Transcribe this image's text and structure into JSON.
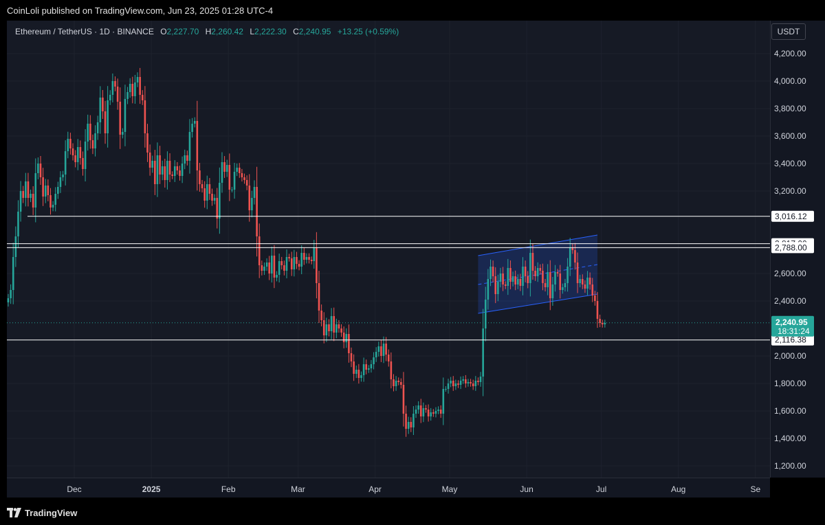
{
  "header": {
    "published": "CoinLoli published on TradingView.com, Jun 23, 2025 01:28 UTC-4"
  },
  "legend": {
    "symbol": "Ethereum / TetherUS · 1D · BINANCE",
    "o_label": "O",
    "o": "2,227.70",
    "h_label": "H",
    "h": "2,260.42",
    "l_label": "L",
    "l": "2,222.30",
    "c_label": "C",
    "c": "2,240.95",
    "change": "+13.25 (+0.59%)"
  },
  "currency": "USDT",
  "footer": {
    "brand": "TradingView"
  },
  "colors": {
    "up": "#26a69a",
    "down": "#ef5350",
    "channel": "#2962ff",
    "level": "#ffffff"
  },
  "chart_data": {
    "type": "candlestick",
    "title": "Ethereum / TetherUS · 1D · BINANCE",
    "y_ticks": [
      "4,200.00",
      "4,000.00",
      "3,800.00",
      "3,600.00",
      "3,400.00",
      "3,200.00",
      "2,600.00",
      "2,400.00",
      "2,000.00",
      "1,800.00",
      "1,600.00",
      "1,400.00",
      "1,200.00"
    ],
    "y_tick_values": [
      4200,
      4000,
      3800,
      3600,
      3400,
      3200,
      2600,
      2400,
      2000,
      1800,
      1600,
      1400,
      1200
    ],
    "x_ticks": [
      {
        "label": "Dec",
        "day": 0
      },
      {
        "label": "2025",
        "day": 31
      },
      {
        "label": "Feb",
        "day": 62
      },
      {
        "label": "Mar",
        "day": 90
      },
      {
        "label": "Apr",
        "day": 121
      },
      {
        "label": "May",
        "day": 151
      },
      {
        "label": "Jun",
        "day": 182
      },
      {
        "label": "Jul",
        "day": 212
      },
      {
        "label": "Aug",
        "day": 243
      },
      {
        "label": "Se",
        "day": 274
      }
    ],
    "ylim": [
      1150,
      4380
    ],
    "start_date": "2024-11-04",
    "price_levels": [
      {
        "value": 3016.12,
        "label": "3,016.12"
      },
      {
        "value": 2817.0,
        "label": "2,817.00"
      },
      {
        "value": 2788.0,
        "label": "2,788.00"
      },
      {
        "value": 2116.38,
        "label": "2,116.38"
      }
    ],
    "last_price": {
      "value": 2240.95,
      "label": "2,240.95",
      "countdown": "18:31:24"
    },
    "channel": {
      "start": "2025-05-12",
      "end": "2025-06-29",
      "lower_start": 2310,
      "lower_end": 2450,
      "upper_start": 2730,
      "upper_end": 2880,
      "mid_start": 2520,
      "mid_end": 2665
    },
    "closes": [
      2420,
      2480,
      2720,
      2870,
      3050,
      3200,
      3150,
      3270,
      3150,
      3180,
      3080,
      3330,
      3400,
      3300,
      3160,
      3240,
      3170,
      3080,
      3100,
      3180,
      3230,
      3300,
      3320,
      3490,
      3580,
      3510,
      3460,
      3410,
      3520,
      3440,
      3360,
      3560,
      3690,
      3570,
      3510,
      3620,
      3700,
      3880,
      3780,
      3620,
      3860,
      3900,
      4000,
      3960,
      3850,
      3610,
      3630,
      3870,
      3920,
      3980,
      3890,
      3990,
      4030,
      3900,
      3860,
      3620,
      3480,
      3370,
      3420,
      3250,
      3460,
      3320,
      3380,
      3280,
      3420,
      3320,
      3310,
      3380,
      3350,
      3310,
      3400,
      3460,
      3420,
      3630,
      3690,
      3710,
      3350,
      3250,
      3220,
      3130,
      3250,
      3180,
      3130,
      3150,
      3000,
      3260,
      3410,
      3340,
      3390,
      3210,
      3210,
      3340,
      3370,
      3330,
      3300,
      3280,
      3240,
      3060,
      3150,
      3230,
      2870,
      2660,
      2620,
      2650,
      2680,
      2600,
      2730,
      2570,
      2590,
      2690,
      2660,
      2620,
      2720,
      2710,
      2630,
      2720,
      2670,
      2650,
      2750,
      2700,
      2720,
      2700,
      2690,
      2790,
      2530,
      2330,
      2260,
      2150,
      2230,
      2180,
      2290,
      2170,
      2230,
      2200,
      2170,
      2100,
      2160,
      2020,
      1960,
      1870,
      1900,
      1840,
      1860,
      1940,
      1900,
      1910,
      1940,
      1990,
      2030,
      2070,
      2000,
      2090,
      2010,
      1960,
      1830,
      1780,
      1820,
      1810,
      1790,
      1580,
      1470,
      1520,
      1480,
      1580,
      1610,
      1640,
      1560,
      1620,
      1610,
      1560,
      1590,
      1580,
      1600,
      1610,
      1580,
      1760,
      1760,
      1800,
      1820,
      1780,
      1800,
      1790,
      1820,
      1830,
      1800,
      1810,
      1800,
      1780,
      1820,
      1810,
      1850,
      2200,
      2410,
      2560,
      2650,
      2580,
      2450,
      2540,
      2600,
      2520,
      2510,
      2640,
      2540,
      2580,
      2520,
      2560,
      2510,
      2650,
      2580,
      2530,
      2750,
      2620,
      2580,
      2640,
      2620,
      2530,
      2500,
      2610,
      2420,
      2520,
      2610,
      2600,
      2480,
      2500,
      2530,
      2650,
      2790,
      2770,
      2680,
      2530,
      2560,
      2520,
      2490,
      2570,
      2520,
      2440,
      2400,
      2270,
      2240,
      2230,
      2240
    ]
  }
}
